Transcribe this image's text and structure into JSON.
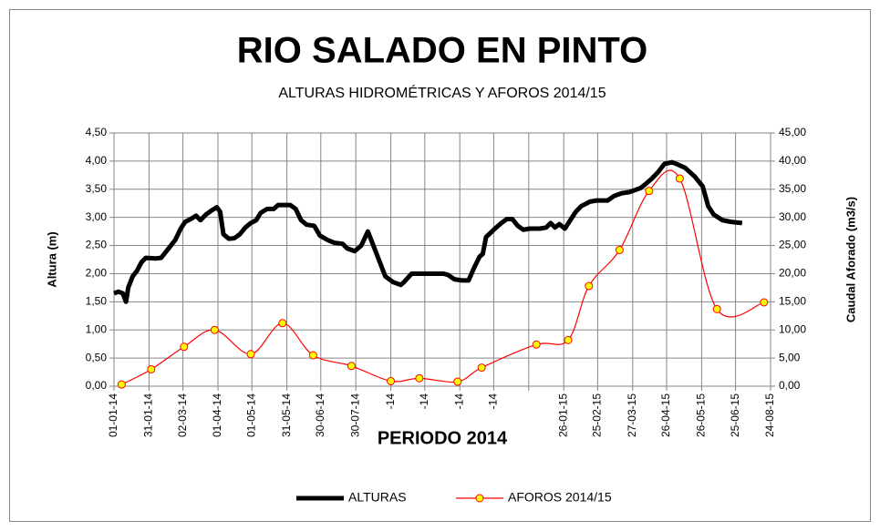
{
  "chart_data": {
    "type": "line",
    "title": "RIO SALADO EN PINTO",
    "subtitle": "ALTURAS HIDROMÉTRICAS Y AFOROS 2014/15",
    "x_label": "PERIODO 2014",
    "y_label": "Altura (m)",
    "y2_label": "Caudal Aforado (m3/s)",
    "grid": true,
    "legend": "bottom",
    "xlim": [
      0,
      600
    ],
    "xticks": [
      {
        "value": 0,
        "label": "01-01-14"
      },
      {
        "value": 32,
        "label": "31-01-14"
      },
      {
        "value": 63,
        "label": "02-03-14"
      },
      {
        "value": 95,
        "label": "01-04-14"
      },
      {
        "value": 126,
        "label": "01-05-14"
      },
      {
        "value": 158,
        "label": "31-05-14"
      },
      {
        "value": 189,
        "label": "30-06-14"
      },
      {
        "value": 221,
        "label": "30-07-14"
      },
      {
        "value": 253,
        "label": "-14"
      },
      {
        "value": 284,
        "label": "-14"
      },
      {
        "value": 316,
        "label": "-14"
      },
      {
        "value": 347,
        "label": "-14"
      },
      {
        "value": 379,
        "label": null
      },
      {
        "value": 411,
        "label": "26-01-15"
      },
      {
        "value": 442,
        "label": "25-02-15"
      },
      {
        "value": 474,
        "label": "27-03-15"
      },
      {
        "value": 505,
        "label": "26-04-15"
      },
      {
        "value": 537,
        "label": "26-05-15"
      },
      {
        "value": 568,
        "label": "25-06-15"
      },
      {
        "value": 600,
        "label": "24-08-15"
      }
    ],
    "ylim": [
      0,
      4.5
    ],
    "yticks": [
      {
        "value": 0,
        "label": "0,00"
      },
      {
        "value": 0.5,
        "label": "0,50"
      },
      {
        "value": 1,
        "label": "1,00"
      },
      {
        "value": 1.5,
        "label": "1,50"
      },
      {
        "value": 2,
        "label": "2,00"
      },
      {
        "value": 2.5,
        "label": "2,50"
      },
      {
        "value": 3,
        "label": "3,00"
      },
      {
        "value": 3.5,
        "label": "3,50"
      },
      {
        "value": 4,
        "label": "4,00"
      },
      {
        "value": 4.5,
        "label": "4,50"
      }
    ],
    "y2lim": [
      0,
      45
    ],
    "y2ticks": [
      {
        "value": 0,
        "label": "0,00"
      },
      {
        "value": 5,
        "label": "5,00"
      },
      {
        "value": 10,
        "label": "10,00"
      },
      {
        "value": 15,
        "label": "15,00"
      },
      {
        "value": 20,
        "label": "20,00"
      },
      {
        "value": 25,
        "label": "25,00"
      },
      {
        "value": 30,
        "label": "30,00"
      },
      {
        "value": 35,
        "label": "35,00"
      },
      {
        "value": 40,
        "label": "40,00"
      },
      {
        "value": 45,
        "label": "45,00"
      }
    ],
    "series": [
      {
        "name": "ALTURAS",
        "color": "#000000",
        "axis": "y",
        "x": [
          0,
          4,
          8,
          11,
          13,
          17,
          21,
          25,
          29,
          38,
          43,
          50,
          56,
          61,
          65,
          71,
          75,
          79,
          84,
          89,
          94,
          97,
          100,
          105,
          110,
          115,
          120,
          125,
          130,
          134,
          140,
          146,
          150,
          161,
          166,
          171,
          176,
          183,
          188,
          195,
          201,
          209,
          213,
          220,
          226,
          232,
          237,
          242,
          248,
          255,
          262,
          265,
          272,
          284,
          301,
          305,
          311,
          318,
          324,
          329,
          334,
          337,
          340,
          347,
          354,
          359,
          364,
          369,
          374,
          380,
          389,
          395,
          399,
          403,
          407,
          412,
          417,
          422,
          427,
          435,
          441,
          451,
          457,
          464,
          471,
          481,
          485,
          491,
          497,
          503,
          510,
          514,
          522,
          531,
          538,
          543,
          548,
          556,
          564,
          574
        ],
        "values": [
          1.65,
          1.68,
          1.65,
          1.5,
          1.75,
          1.95,
          2.05,
          2.2,
          2.28,
          2.27,
          2.28,
          2.45,
          2.6,
          2.8,
          2.92,
          2.98,
          3.03,
          2.95,
          3.05,
          3.12,
          3.18,
          3.1,
          2.7,
          2.62,
          2.63,
          2.7,
          2.82,
          2.9,
          2.95,
          3.08,
          3.15,
          3.15,
          3.22,
          3.22,
          3.15,
          2.95,
          2.87,
          2.85,
          2.68,
          2.6,
          2.55,
          2.53,
          2.45,
          2.4,
          2.5,
          2.75,
          2.5,
          2.25,
          1.95,
          1.85,
          1.8,
          1.85,
          2.0,
          2.0,
          2.0,
          1.98,
          1.9,
          1.88,
          1.88,
          2.1,
          2.3,
          2.35,
          2.65,
          2.78,
          2.9,
          2.97,
          2.97,
          2.85,
          2.78,
          2.8,
          2.8,
          2.82,
          2.9,
          2.82,
          2.88,
          2.8,
          2.95,
          3.1,
          3.2,
          3.28,
          3.3,
          3.3,
          3.38,
          3.43,
          3.45,
          3.52,
          3.58,
          3.68,
          3.8,
          3.95,
          3.98,
          3.95,
          3.88,
          3.72,
          3.55,
          3.2,
          3.05,
          2.95,
          2.92,
          2.9
        ]
      },
      {
        "name": "AFOROS 2014/15",
        "color": "#ff0000",
        "marker_color": "#ffff00",
        "axis": "y2",
        "x": [
          7,
          34,
          64,
          92,
          125,
          154,
          182,
          217,
          253,
          279,
          314,
          336,
          386,
          415,
          434,
          462,
          489,
          517,
          551,
          594
        ],
        "values": [
          0.3,
          3.0,
          7.0,
          10.0,
          5.7,
          11.2,
          5.5,
          3.6,
          0.9,
          1.4,
          0.8,
          3.3,
          7.4,
          8.2,
          17.8,
          24.2,
          34.7,
          36.9,
          13.7,
          14.9
        ]
      }
    ]
  }
}
